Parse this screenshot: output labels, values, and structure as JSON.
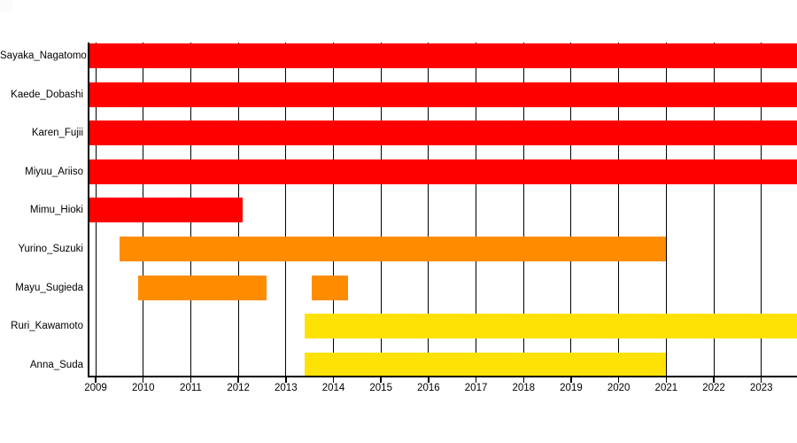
{
  "chart_data": {
    "type": "bar",
    "variant": "gantt-horizontal-broken-bars",
    "title": "",
    "xlabel": "",
    "ylabel": "",
    "xlim": [
      2008.85,
      2023.75
    ],
    "grid": true,
    "gridline_color": "#000000",
    "axis_color": "#000000",
    "background_color": "#ffffff",
    "x_ticks": [
      2009,
      2010,
      2011,
      2012,
      2013,
      2014,
      2015,
      2016,
      2017,
      2018,
      2019,
      2020,
      2021,
      2022,
      2023
    ],
    "x_tick_labels": [
      "2009",
      "2010",
      "2011",
      "2012",
      "2013",
      "2014",
      "2015",
      "2016",
      "2017",
      "2018",
      "2019",
      "2020",
      "2021",
      "2022",
      "2023"
    ],
    "categories": [
      "Sayaka_Nagatomo",
      "Kaede_Dobashi",
      "Karen_Fujii",
      "Miyuu_Ariiso",
      "Mimu_Hioki",
      "Yurino_Suzuki",
      "Mayu_Sugieda",
      "Ruri_Kawamoto",
      "Anna_Suda"
    ],
    "colors": {
      "red": "#ff0000",
      "orange": "#ff8c00",
      "yellow": "#ffe205"
    },
    "rows": [
      {
        "name": "Sayaka_Nagatomo",
        "color": "red",
        "segments": [
          {
            "start": 2008.85,
            "end": 2023.75
          }
        ]
      },
      {
        "name": "Kaede_Dobashi",
        "color": "red",
        "segments": [
          {
            "start": 2008.85,
            "end": 2023.75
          }
        ]
      },
      {
        "name": "Karen_Fujii",
        "color": "red",
        "segments": [
          {
            "start": 2008.85,
            "end": 2023.75
          }
        ]
      },
      {
        "name": "Miyuu_Ariiso",
        "color": "red",
        "segments": [
          {
            "start": 2008.85,
            "end": 2023.75
          }
        ]
      },
      {
        "name": "Mimu_Hioki",
        "color": "red",
        "segments": [
          {
            "start": 2008.85,
            "end": 2012.1
          }
        ]
      },
      {
        "name": "Yurino_Suzuki",
        "color": "orange",
        "segments": [
          {
            "start": 2009.5,
            "end": 2021.0
          }
        ]
      },
      {
        "name": "Mayu_Sugieda",
        "color": "orange",
        "segments": [
          {
            "start": 2009.9,
            "end": 2012.6
          },
          {
            "start": 2013.55,
            "end": 2014.3
          }
        ]
      },
      {
        "name": "Ruri_Kawamoto",
        "color": "yellow",
        "segments": [
          {
            "start": 2013.4,
            "end": 2023.75
          }
        ]
      },
      {
        "name": "Anna_Suda",
        "color": "yellow",
        "segments": [
          {
            "start": 2013.4,
            "end": 2021.0
          }
        ]
      }
    ]
  }
}
